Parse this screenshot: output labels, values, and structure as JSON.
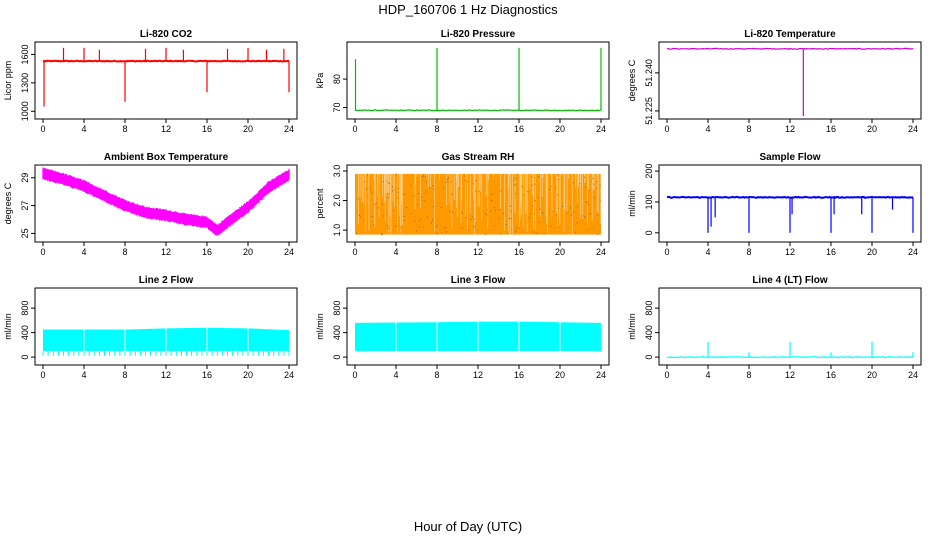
{
  "figure": {
    "title": "HDP_160706  1 Hz Diagnostics",
    "xlabel": "Hour of Day (UTC)"
  },
  "chart_data": [
    {
      "type": "line",
      "title": "Li-820 CO2",
      "ylabel": "Licor ppm",
      "color": "#ff0000",
      "xlim": [
        0,
        24
      ],
      "ylim": [
        950,
        1700
      ],
      "xticks": [
        0,
        4,
        8,
        12,
        16,
        20,
        24
      ],
      "yticks": [
        1000,
        1300,
        1600
      ],
      "yticks_shown": [
        "1000",
        "1300",
        "1600"
      ],
      "baseline": 1530,
      "events": [
        {
          "x": 0.1,
          "y": 1050
        },
        {
          "x": 2.0,
          "y": 1670
        },
        {
          "x": 4.0,
          "y": 1670
        },
        {
          "x": 5.5,
          "y": 1650
        },
        {
          "x": 8.0,
          "y": 1100
        },
        {
          "x": 10.0,
          "y": 1660
        },
        {
          "x": 12.0,
          "y": 1670
        },
        {
          "x": 13.7,
          "y": 1650
        },
        {
          "x": 16.0,
          "y": 1200
        },
        {
          "x": 18.0,
          "y": 1660
        },
        {
          "x": 20.0,
          "y": 1670
        },
        {
          "x": 21.8,
          "y": 1650
        },
        {
          "x": 23.5,
          "y": 1660
        },
        {
          "x": 24.0,
          "y": 1200
        }
      ]
    },
    {
      "type": "line",
      "title": "Li-820 Pressure",
      "ylabel": "kPa",
      "color": "#00bb00",
      "xlim": [
        0,
        24
      ],
      "ylim": [
        67,
        92
      ],
      "xticks": [
        0,
        4,
        8,
        12,
        16,
        20,
        24
      ],
      "yticks": [
        70,
        80
      ],
      "yticks_shown": [
        "70",
        "80"
      ],
      "baseline": 69,
      "events": [
        {
          "x": 0.05,
          "y": 87
        },
        {
          "x": 8.0,
          "y": 91
        },
        {
          "x": 16.0,
          "y": 91
        },
        {
          "x": 24.0,
          "y": 91
        }
      ]
    },
    {
      "type": "line",
      "title": "Li-820 Temperature",
      "ylabel": "degrees C",
      "color": "#cc00cc",
      "xlim": [
        0,
        24
      ],
      "ylim": [
        51.223,
        51.251
      ],
      "xticks": [
        0,
        4,
        8,
        12,
        16,
        20,
        24
      ],
      "yticks": [
        51.225,
        51.24
      ],
      "yticks_shown": [
        "51.225",
        "51.240"
      ],
      "baseline": 51.2495,
      "events": [
        {
          "x": 13.3,
          "y": 51.223
        }
      ]
    },
    {
      "type": "line",
      "title": "Ambient Box Temperature",
      "ylabel": "degrees C",
      "color": "#ff00ff",
      "xlim": [
        0,
        24
      ],
      "ylim": [
        24.6,
        29.7
      ],
      "xticks": [
        0,
        4,
        8,
        12,
        16,
        20,
        24
      ],
      "yticks": [
        25,
        27,
        29
      ],
      "yticks_shown": [
        "25",
        "27",
        "29"
      ],
      "x": [
        0,
        2,
        4,
        6,
        8,
        10,
        12,
        14,
        16,
        17,
        18,
        20,
        22,
        24
      ],
      "y": [
        29.3,
        28.9,
        28.4,
        27.7,
        27.0,
        26.5,
        26.3,
        26.0,
        25.8,
        25.2,
        25.8,
        26.9,
        28.3,
        29.2
      ]
    },
    {
      "type": "area",
      "title": "Gas Stream RH",
      "ylabel": "percent",
      "color": "#ff9900",
      "xlim": [
        0,
        24
      ],
      "ylim": [
        0.7,
        3.1
      ],
      "xticks": [
        0,
        4,
        8,
        12,
        16,
        20,
        24
      ],
      "yticks": [
        1.0,
        2.0,
        3.0
      ],
      "yticks_shown": [
        "1.0",
        "2.0",
        "3.0"
      ],
      "band_min": 0.85,
      "band_max": 2.9
    },
    {
      "type": "line",
      "title": "Sample Flow",
      "ylabel": "ml/min",
      "color": "#0000ff",
      "xlim": [
        0,
        24
      ],
      "ylim": [
        -20,
        210
      ],
      "xticks": [
        0,
        4,
        8,
        12,
        16,
        20,
        24
      ],
      "yticks": [
        0,
        100,
        200
      ],
      "yticks_shown": [
        "0",
        "100",
        "200"
      ],
      "baseline": 115,
      "events": [
        {
          "x": 4.0,
          "y": 0
        },
        {
          "x": 4.3,
          "y": 20
        },
        {
          "x": 4.7,
          "y": 50
        },
        {
          "x": 8.0,
          "y": 0
        },
        {
          "x": 12.0,
          "y": 0
        },
        {
          "x": 12.2,
          "y": 60
        },
        {
          "x": 16.0,
          "y": 0
        },
        {
          "x": 16.3,
          "y": 60
        },
        {
          "x": 19.0,
          "y": 60
        },
        {
          "x": 20.0,
          "y": 0
        },
        {
          "x": 22.0,
          "y": 75
        },
        {
          "x": 24.0,
          "y": 0
        }
      ]
    },
    {
      "type": "area",
      "title": "Line 2 Flow",
      "ylabel": "ml/min",
      "color": "#00ffff",
      "xlim": [
        0,
        24
      ],
      "ylim": [
        -80,
        1080
      ],
      "xticks": [
        0,
        4,
        8,
        12,
        16,
        20,
        24
      ],
      "yticks": [
        0,
        400,
        800
      ],
      "yticks_shown": [
        "0",
        "400",
        "800"
      ],
      "band_min": 100,
      "x": [
        0,
        8,
        12,
        16,
        20,
        24
      ],
      "top": [
        450,
        450,
        470,
        480,
        470,
        440
      ],
      "dips_to": 20
    },
    {
      "type": "area",
      "title": "Line 3 Flow",
      "ylabel": "ml/min",
      "color": "#00ffff",
      "xlim": [
        0,
        24
      ],
      "ylim": [
        -80,
        1080
      ],
      "xticks": [
        0,
        4,
        8,
        12,
        16,
        20,
        24
      ],
      "yticks": [
        0,
        400,
        800
      ],
      "yticks_shown": [
        "0",
        "400",
        "800"
      ],
      "band_min": 100,
      "x": [
        0,
        8,
        12,
        16,
        20,
        24
      ],
      "top": [
        560,
        570,
        580,
        580,
        570,
        560
      ]
    },
    {
      "type": "line",
      "title": "Line 4 (LT) Flow",
      "ylabel": "ml/min",
      "color": "#00ffff",
      "xlim": [
        0,
        24
      ],
      "ylim": [
        -80,
        1080
      ],
      "xticks": [
        0,
        4,
        8,
        12,
        16,
        20,
        24
      ],
      "yticks": [
        0,
        400,
        800
      ],
      "yticks_shown": [
        "0",
        "400",
        "800"
      ],
      "baseline": 0,
      "events": [
        {
          "x": 4.0,
          "y": 250
        },
        {
          "x": 8.0,
          "y": 80
        },
        {
          "x": 12.0,
          "y": 250
        },
        {
          "x": 16.0,
          "y": 80
        },
        {
          "x": 20.0,
          "y": 250
        },
        {
          "x": 24.0,
          "y": 80
        }
      ]
    }
  ]
}
